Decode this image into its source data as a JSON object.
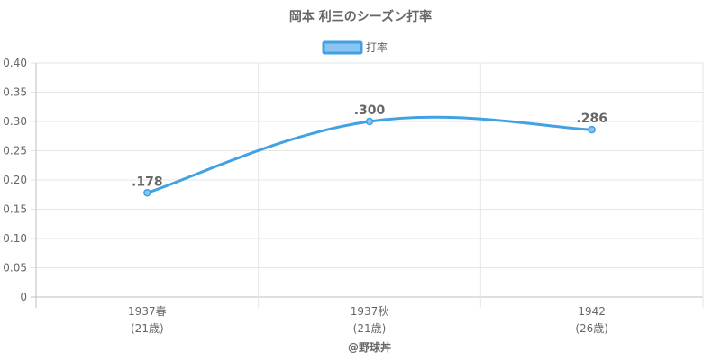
{
  "chart_data": {
    "type": "line",
    "title": "岡本 利三のシーズン打率",
    "legend": {
      "label": "打率",
      "position": "top"
    },
    "categories": [
      {
        "line1": "1937春",
        "line2": "(21歳)"
      },
      {
        "line1": "1937秋",
        "line2": "(21歳)"
      },
      {
        "line1": "1942",
        "line2": "(26歳)"
      }
    ],
    "series": [
      {
        "name": "打率",
        "values": [
          0.178,
          0.3,
          0.286
        ],
        "labels": [
          ".178",
          ".300",
          ".286"
        ]
      }
    ],
    "ylim": [
      0,
      0.4
    ],
    "yticks": [
      "0",
      "0.05",
      "0.10",
      "0.15",
      "0.20",
      "0.25",
      "0.30",
      "0.35",
      "0.40"
    ],
    "grid": true,
    "colors": {
      "line": "#40a2e3",
      "fill": "#8ac4f0",
      "grid": "#e6e6e6",
      "axis": "#bfbfbf",
      "text": "#666666"
    },
    "credit": "@野球丼"
  }
}
